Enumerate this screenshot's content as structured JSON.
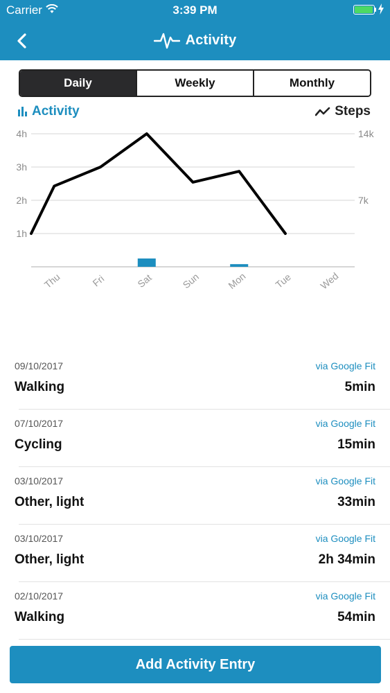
{
  "status_bar": {
    "carrier": "Carrier",
    "time": "3:39 PM",
    "battery_level": 1.0
  },
  "header": {
    "title": "Activity",
    "back_icon": "chevron-left-icon",
    "title_icon": "pulse-icon"
  },
  "segments": [
    {
      "label": "Daily",
      "active": true
    },
    {
      "label": "Weekly",
      "active": false
    },
    {
      "label": "Monthly",
      "active": false
    }
  ],
  "legend": {
    "left_label": "Activity",
    "right_label": "Steps"
  },
  "chart_data": {
    "type": "bar",
    "categories": [
      "Thu",
      "Fri",
      "Sat",
      "Sun",
      "Mon",
      "Tue",
      "Wed"
    ],
    "series": [
      {
        "name": "Activity",
        "type": "bar",
        "axis": "left",
        "color": "#1d8ebf",
        "values": [
          0,
          0,
          0.25,
          0,
          0.08,
          0,
          null
        ]
      },
      {
        "name": "Steps",
        "type": "line",
        "axis": "right",
        "color": "#000000",
        "values": [
          8500,
          10500,
          14000,
          8900,
          10050,
          3500,
          null
        ],
        "start_value": 3500
      }
    ],
    "left_ticks": [
      "1h",
      "2h",
      "3h",
      "4h"
    ],
    "right_ticks": [
      "7k",
      "14k"
    ],
    "ylim_left": [
      0,
      4
    ],
    "ylim_right": [
      0,
      14000
    ],
    "grid": true
  },
  "entries": [
    {
      "date": "09/10/2017",
      "source": "via Google Fit",
      "name": "Walking",
      "duration": "5min"
    },
    {
      "date": "07/10/2017",
      "source": "via Google Fit",
      "name": "Cycling",
      "duration": "15min"
    },
    {
      "date": "03/10/2017",
      "source": "via Google Fit",
      "name": "Other, light",
      "duration": "33min"
    },
    {
      "date": "03/10/2017",
      "source": "via Google Fit",
      "name": "Other, light",
      "duration": "2h 34min"
    },
    {
      "date": "02/10/2017",
      "source": "via Google Fit",
      "name": "Walking",
      "duration": "54min"
    }
  ],
  "add_button": {
    "label": "Add Activity Entry"
  },
  "colors": {
    "brand": "#1d8ebf",
    "segment_active": "#2a2a2c",
    "battery": "#4cd964"
  }
}
